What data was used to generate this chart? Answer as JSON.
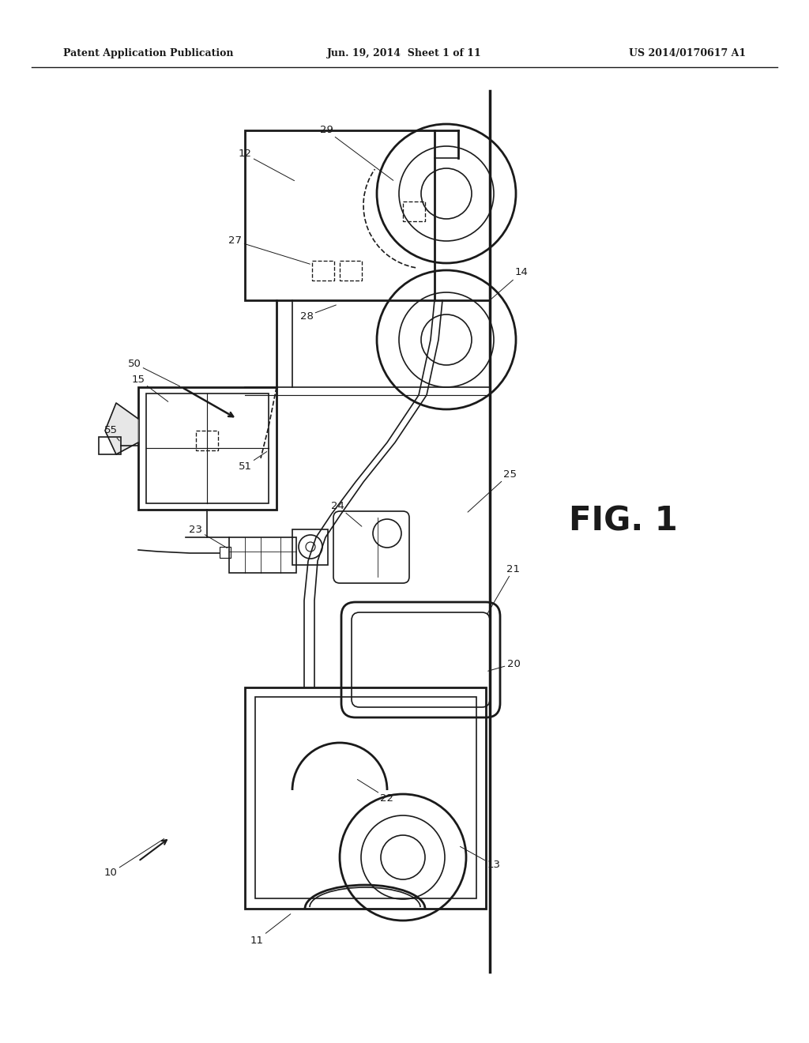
{
  "title_left": "Patent Application Publication",
  "title_center": "Jun. 19, 2014  Sheet 1 of 11",
  "title_right": "US 2014/0170617 A1",
  "fig_label": "FIG. 1",
  "background": "#ffffff",
  "line_color": "#1a1a1a"
}
